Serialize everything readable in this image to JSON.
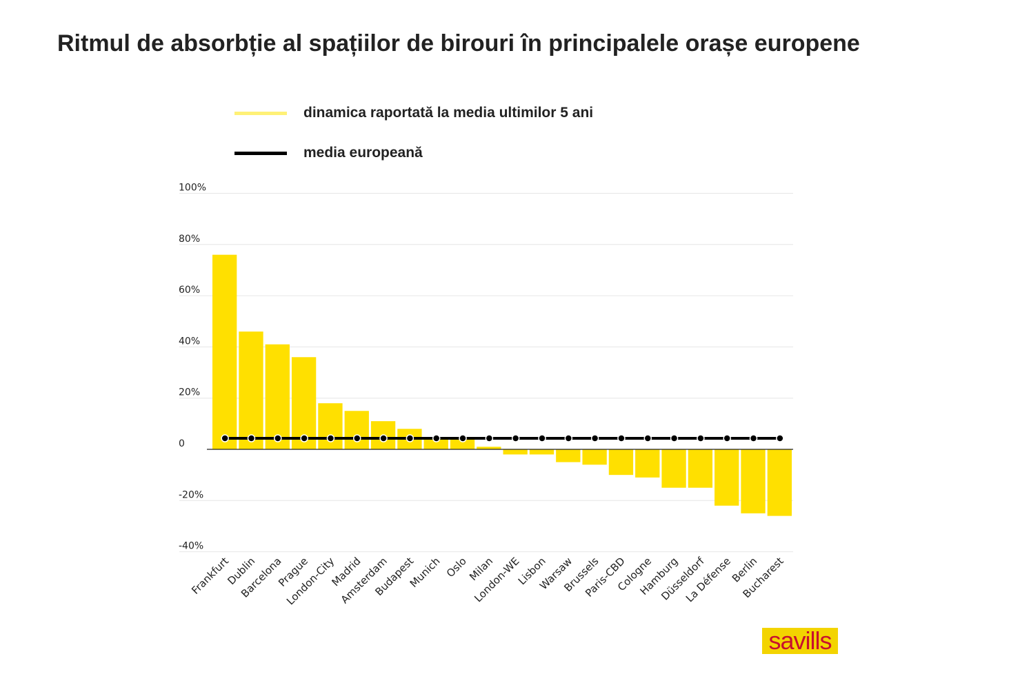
{
  "chart_data": {
    "type": "bar",
    "title": "Ritmul de absorbție al spațiilor de birouri în principalele orașe europene",
    "legend": [
      {
        "label": "dinamica raportată la media ultimilor 5 ani",
        "color": "#ffe000"
      },
      {
        "label": "media europeană",
        "color": "#000000"
      }
    ],
    "legend_placement": "top-left",
    "categories": [
      "Frankfurt",
      "Dublin",
      "Barcelona",
      "Prague",
      "London-City",
      "Madrid",
      "Amsterdam",
      "Budapest",
      "Munich",
      "Oslo",
      "Milan",
      "London-WE",
      "Lisbon",
      "Warsaw",
      "Brussels",
      "Paris-CBD",
      "Cologne",
      "Hamburg",
      "Düsseldorf",
      "La Défense",
      "Berlin",
      "Bucharest"
    ],
    "series": [
      {
        "name": "dinamica raportată la media ultimilor 5 ani",
        "values": [
          76,
          46,
          41,
          36,
          18,
          15,
          11,
          8,
          4,
          4,
          1,
          -2,
          -2,
          -5,
          -6,
          -10,
          -11,
          -15,
          -15,
          -22,
          -25,
          -26
        ]
      },
      {
        "name": "media europeană",
        "values": [
          4.3,
          4.3,
          4.3,
          4.3,
          4.3,
          4.3,
          4.3,
          4.3,
          4.3,
          4.3,
          4.3,
          4.3,
          4.3,
          4.3,
          4.3,
          4.3,
          4.3,
          4.3,
          4.3,
          4.3,
          4.3,
          4.3
        ]
      }
    ],
    "yticks": [
      100,
      80,
      60,
      40,
      20,
      0,
      -20,
      -40
    ],
    "ytick_labels": [
      "100%",
      "80%",
      "60%",
      "40%",
      "20%",
      "0",
      "-20%",
      "-40%"
    ],
    "ylim": [
      -40,
      100
    ],
    "grid": true,
    "xlabel": "",
    "ylabel": ""
  },
  "logo": "savills"
}
